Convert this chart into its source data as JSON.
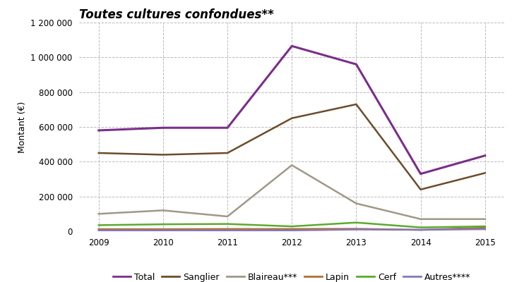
{
  "title": "Toutes cultures confondues**",
  "ylabel": "Montant (€)",
  "years": [
    2009,
    2010,
    2011,
    2012,
    2013,
    2014,
    2015
  ],
  "series": {
    "Total": {
      "values": [
        580000,
        595000,
        595000,
        1065000,
        960000,
        330000,
        435000
      ],
      "color": "#7b2d8b",
      "lw": 2.2
    },
    "Sanglier": {
      "values": [
        450000,
        440000,
        450000,
        650000,
        730000,
        240000,
        335000
      ],
      "color": "#6b4c2a",
      "lw": 1.8
    },
    "Blaireau***": {
      "values": [
        100000,
        120000,
        85000,
        380000,
        160000,
        70000,
        70000
      ],
      "color": "#a09888",
      "lw": 1.8
    },
    "Lapin": {
      "values": [
        12000,
        12000,
        13000,
        13000,
        14000,
        8000,
        20000
      ],
      "color": "#b07030",
      "lw": 1.8
    },
    "Cerf": {
      "values": [
        35000,
        40000,
        42000,
        28000,
        50000,
        22000,
        28000
      ],
      "color": "#5aaa30",
      "lw": 1.8
    },
    "Autres****": {
      "values": [
        5000,
        5000,
        5000,
        5000,
        10000,
        8000,
        12000
      ],
      "color": "#8877bb",
      "lw": 1.8
    }
  },
  "ylim": [
    0,
    1200000
  ],
  "yticks": [
    0,
    200000,
    400000,
    600000,
    800000,
    1000000,
    1200000
  ],
  "plot_bg": "#ffffff",
  "outer_bg": "#ffffff",
  "gray_bar_color": "#d0d0d0",
  "grid_color": "#bbbbbb",
  "title_fontsize": 12,
  "axis_label_fontsize": 9,
  "tick_fontsize": 8.5,
  "legend_fontsize": 9
}
